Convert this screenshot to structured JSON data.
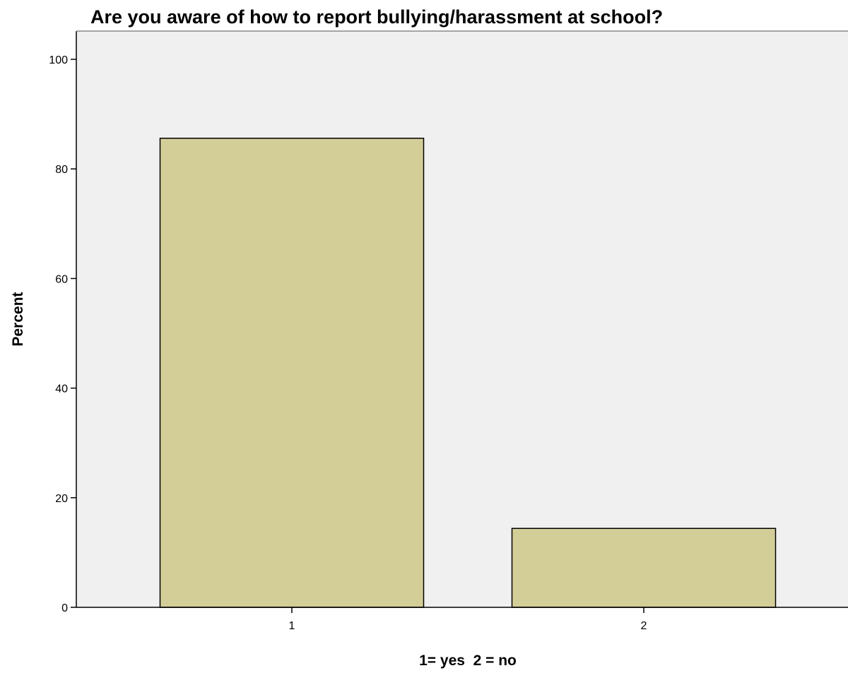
{
  "chart_data": {
    "type": "bar",
    "title": "Are you aware of how to report bullying/harassment at school?",
    "xlabel": "1= yes  2 = no",
    "ylabel": "Percent",
    "categories": [
      "1",
      "2"
    ],
    "values": [
      85.6,
      14.4
    ],
    "ylim": [
      0,
      100
    ],
    "yticks": [
      0,
      20,
      40,
      60,
      80,
      100
    ],
    "grid": false,
    "colors": {
      "bar": "#d3cd98",
      "plot_background": "#f0f0f0",
      "axis": "#000000"
    }
  }
}
